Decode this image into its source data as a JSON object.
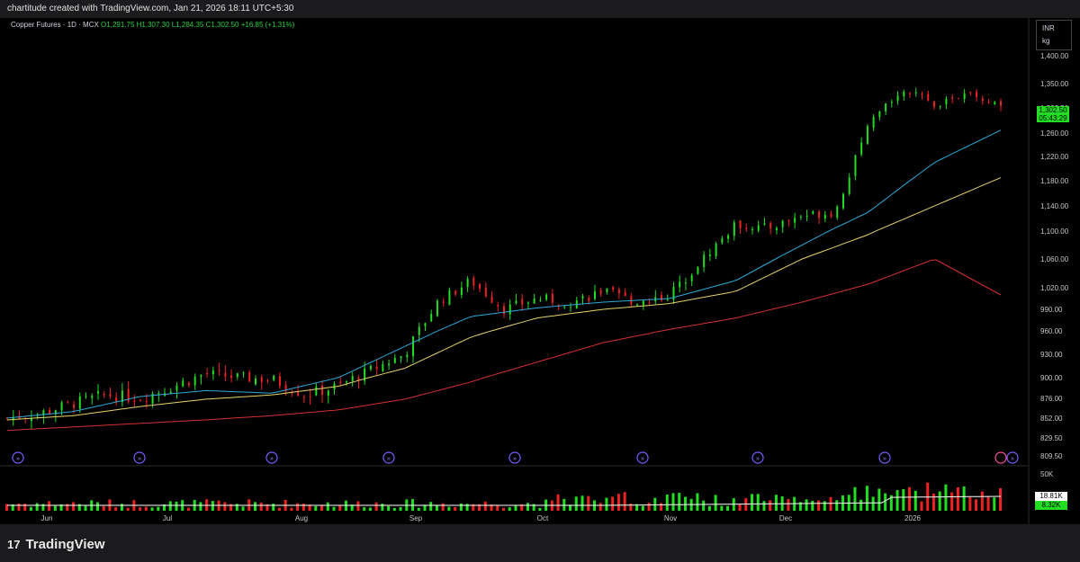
{
  "header": {
    "credit": "chartitude created with TradingView.com, Jan 21, 2026 18:11 UTC+5:30"
  },
  "legend": {
    "symbol": "Copper Futures · 1D · MCX",
    "ohlc": "O1,291.75 H1,307.30 L1,284.35 C1,302.50 +16.85 (+1.31%)"
  },
  "unit": {
    "currency": "INR",
    "unit": "kg"
  },
  "footer": {
    "logo_text": "TradingView",
    "logo_mark": "17"
  },
  "colors": {
    "up": "#22dd22",
    "down": "#ee2222",
    "ma_short": "#2fa9d8",
    "ma_mid": "#e6d36a",
    "ma_long": "#d63030",
    "vol_ma": "#ffffff"
  },
  "chart_data": {
    "type": "candlestick",
    "y_ticks": [
      "1,400.00",
      "1,350.00",
      "1,302.50",
      "1,260.00",
      "1,220.00",
      "1,180.00",
      "1,140.00",
      "1,100.00",
      "1,060.00",
      "1,020.00",
      "990.00",
      "960.00",
      "930.00",
      "900.00",
      "876.00",
      "852.00",
      "829.50",
      "809.50"
    ],
    "x_ticks": [
      "Jun",
      "Jul",
      "Aug",
      "Sep",
      "Oct",
      "Nov",
      "Dec",
      "2026"
    ],
    "volume_axis_label": "50K",
    "last_price": "1,302.50",
    "countdown": "05:43:29",
    "volume_last": "18.81K",
    "volume_ma_last": "8.32K",
    "candles_close_sample": [
      852,
      858,
      870,
      880,
      876,
      890,
      905,
      900,
      898,
      880,
      890,
      910,
      930,
      1000,
      1030,
      990,
      1005,
      1000,
      1015,
      1000,
      1010,
      1060,
      1110,
      1105,
      1125,
      1130,
      1270,
      1340,
      1310,
      1330,
      1302.5
    ],
    "ma_short": [
      852,
      860,
      878,
      885,
      882,
      900,
      940,
      980,
      992,
      1000,
      1005,
      1030,
      1080,
      1130,
      1210,
      1265
    ],
    "ma_mid": [
      850,
      855,
      866,
      875,
      880,
      890,
      912,
      952,
      978,
      990,
      998,
      1015,
      1060,
      1095,
      1140,
      1185
    ],
    "ma_long": [
      838,
      842,
      846,
      850,
      855,
      862,
      875,
      895,
      920,
      945,
      962,
      978,
      1000,
      1025,
      1060,
      1010
    ]
  }
}
